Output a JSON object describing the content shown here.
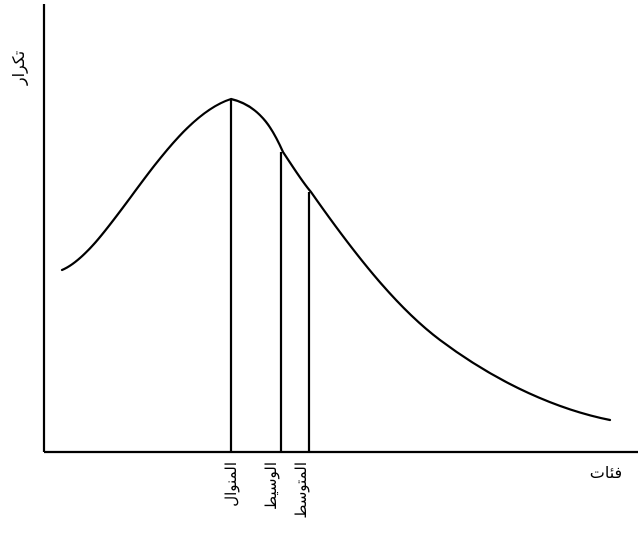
{
  "diagram": {
    "y_axis_label": "تکرار",
    "x_axis_label": "فئات",
    "markers": [
      {
        "label": "المنوال"
      },
      {
        "label": "الوسيط"
      },
      {
        "label": "المتوسط"
      }
    ]
  }
}
